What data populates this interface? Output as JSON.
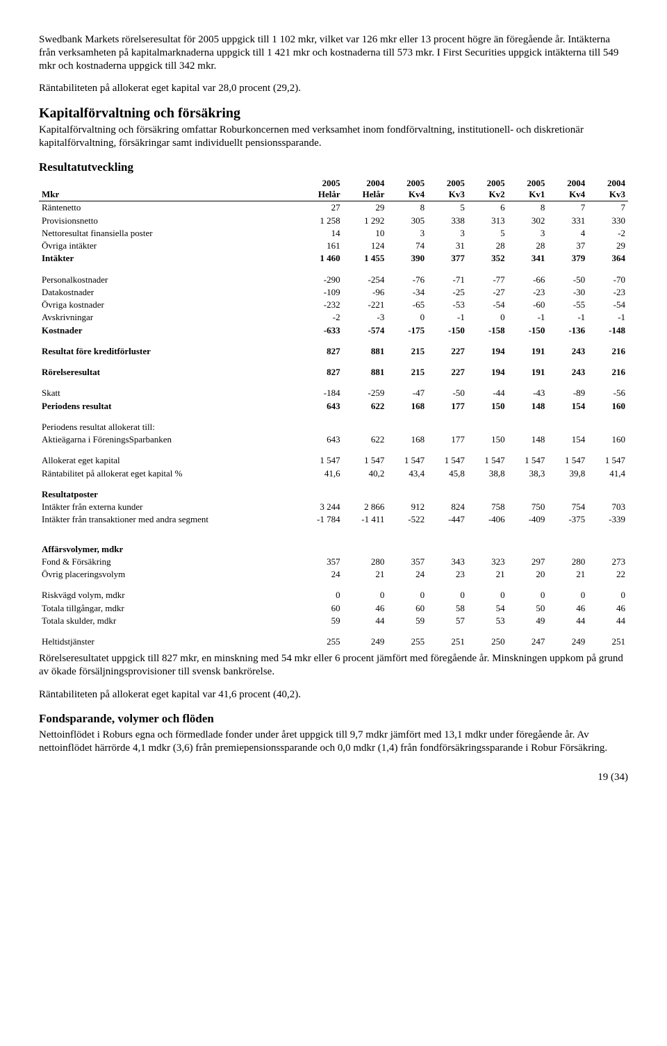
{
  "para1": "Swedbank Markets rörelseresultat för 2005 uppgick till 1 102 mkr, vilket var 126 mkr eller 13 procent högre än föregående år. Intäkterna från verksamheten på kapitalmarknaderna uppgick till 1 421 mkr och kostnaderna till 573 mkr. I First Securities uppgick intäkterna till 549 mkr och kostnaderna uppgick till 342 mkr.",
  "para2": "Räntabiliteten på allokerat eget kapital var 28,0 procent (29,2).",
  "h2": "Kapitalförvaltning och försäkring",
  "para3": "Kapitalförvaltning och försäkring omfattar Roburkoncernen med verksamhet inom fondförvaltning, institutionell- och diskretionär kapitalförvaltning, försäkringar samt individuellt pensionssparande.",
  "h3a": "Resultatutveckling",
  "header": {
    "mkr": "Mkr",
    "cols": [
      {
        "a": "2005",
        "b": "Helår"
      },
      {
        "a": "2004",
        "b": "Helår"
      },
      {
        "a": "2005",
        "b": "Kv4"
      },
      {
        "a": "2005",
        "b": "Kv3"
      },
      {
        "a": "2005",
        "b": "Kv2"
      },
      {
        "a": "2005",
        "b": "Kv1"
      },
      {
        "a": "2004",
        "b": "Kv4"
      },
      {
        "a": "2004",
        "b": "Kv3"
      }
    ]
  },
  "rows": [
    {
      "l": "Räntenetto",
      "v": [
        "27",
        "29",
        "8",
        "5",
        "6",
        "8",
        "7",
        "7"
      ]
    },
    {
      "l": "Provisionsnetto",
      "v": [
        "1 258",
        "1 292",
        "305",
        "338",
        "313",
        "302",
        "331",
        "330"
      ]
    },
    {
      "l": "Nettoresultat finansiella poster",
      "v": [
        "14",
        "10",
        "3",
        "3",
        "5",
        "3",
        "4",
        "-2"
      ]
    },
    {
      "l": "Övriga intäkter",
      "v": [
        "161",
        "124",
        "74",
        "31",
        "28",
        "28",
        "37",
        "29"
      ]
    },
    {
      "l": "Intäkter",
      "v": [
        "1 460",
        "1 455",
        "390",
        "377",
        "352",
        "341",
        "379",
        "364"
      ],
      "bold": true
    },
    {
      "spacer": true
    },
    {
      "l": "Personalkostnader",
      "v": [
        "-290",
        "-254",
        "-76",
        "-71",
        "-77",
        "-66",
        "-50",
        "-70"
      ]
    },
    {
      "l": "Datakostnader",
      "v": [
        "-109",
        "-96",
        "-34",
        "-25",
        "-27",
        "-23",
        "-30",
        "-23"
      ]
    },
    {
      "l": "Övriga kostnader",
      "v": [
        "-232",
        "-221",
        "-65",
        "-53",
        "-54",
        "-60",
        "-55",
        "-54"
      ]
    },
    {
      "l": "Avskrivningar",
      "v": [
        "-2",
        "-3",
        "0",
        "-1",
        "0",
        "-1",
        "-1",
        "-1"
      ]
    },
    {
      "l": "Kostnader",
      "v": [
        "-633",
        "-574",
        "-175",
        "-150",
        "-158",
        "-150",
        "-136",
        "-148"
      ],
      "bold": true
    },
    {
      "spacer": true
    },
    {
      "l": "Resultat före kreditförluster",
      "v": [
        "827",
        "881",
        "215",
        "227",
        "194",
        "191",
        "243",
        "216"
      ],
      "bold": true
    },
    {
      "spacer": true
    },
    {
      "l": "Rörelseresultat",
      "v": [
        "827",
        "881",
        "215",
        "227",
        "194",
        "191",
        "243",
        "216"
      ],
      "bold": true
    },
    {
      "spacer": true
    },
    {
      "l": "Skatt",
      "v": [
        "-184",
        "-259",
        "-47",
        "-50",
        "-44",
        "-43",
        "-89",
        "-56"
      ]
    },
    {
      "l": "Periodens resultat",
      "v": [
        "643",
        "622",
        "168",
        "177",
        "150",
        "148",
        "154",
        "160"
      ],
      "bold": true
    },
    {
      "spacer": true
    },
    {
      "l": "Periodens resultat allokerat till:",
      "v": [
        "",
        "",
        "",
        "",
        "",
        "",
        "",
        ""
      ]
    },
    {
      "l": "Aktieägarna i FöreningsSparbanken",
      "v": [
        "643",
        "622",
        "168",
        "177",
        "150",
        "148",
        "154",
        "160"
      ]
    },
    {
      "spacer": true
    },
    {
      "l": "Allokerat eget kapital",
      "v": [
        "1 547",
        "1 547",
        "1 547",
        "1 547",
        "1 547",
        "1 547",
        "1 547",
        "1 547"
      ]
    },
    {
      "l": "Räntabilitet på allokerat eget kapital %",
      "v": [
        "41,6",
        "40,2",
        "43,4",
        "45,8",
        "38,8",
        "38,3",
        "39,8",
        "41,4"
      ]
    },
    {
      "spacer": true
    },
    {
      "l": "Resultatposter",
      "v": [
        "",
        "",
        "",
        "",
        "",
        "",
        "",
        ""
      ],
      "bold": true
    },
    {
      "l": "Intäkter från externa kunder",
      "v": [
        "3 244",
        "2 866",
        "912",
        "824",
        "758",
        "750",
        "754",
        "703"
      ]
    },
    {
      "l": "Intäkter från transaktioner med andra segment",
      "v": [
        "-1 784",
        "-1 411",
        "-522",
        "-447",
        "-406",
        "-409",
        "-375",
        "-339"
      ]
    },
    {
      "spacer": true
    },
    {
      "spacer": true
    },
    {
      "l": "Affärsvolymer, mdkr",
      "v": [
        "",
        "",
        "",
        "",
        "",
        "",
        "",
        ""
      ],
      "bold": true
    },
    {
      "l": "Fond & Försäkring",
      "v": [
        "357",
        "280",
        "357",
        "343",
        "323",
        "297",
        "280",
        "273"
      ]
    },
    {
      "l": "Övrig placeringsvolym",
      "v": [
        "24",
        "21",
        "24",
        "23",
        "21",
        "20",
        "21",
        "22"
      ]
    },
    {
      "spacer": true
    },
    {
      "l": "Riskvägd volym, mdkr",
      "v": [
        "0",
        "0",
        "0",
        "0",
        "0",
        "0",
        "0",
        "0"
      ]
    },
    {
      "l": "Totala tillgångar, mdkr",
      "v": [
        "60",
        "46",
        "60",
        "58",
        "54",
        "50",
        "46",
        "46"
      ]
    },
    {
      "l": "Totala skulder, mdkr",
      "v": [
        "59",
        "44",
        "59",
        "57",
        "53",
        "49",
        "44",
        "44"
      ]
    },
    {
      "spacer": true
    },
    {
      "l": "Heltidstjänster",
      "v": [
        "255",
        "249",
        "255",
        "251",
        "250",
        "247",
        "249",
        "251"
      ]
    }
  ],
  "para4": "Rörelseresultatet uppgick till 827 mkr, en minskning med 54 mkr eller 6 procent jämfört med föregående år. Minskningen uppkom på grund av ökade försäljningsprovisioner till svensk bankrörelse.",
  "para5": "Räntabiliteten på allokerat eget kapital var 41,6 procent (40,2).",
  "h3b": "Fondsparande, volymer och flöden",
  "para6": "Nettoinflödet i Roburs egna och förmedlade fonder under året uppgick till 9,7 mdkr jämfört med 13,1 mdkr under föregående år. Av nettoinflödet härrörde 4,1 mdkr (3,6) från premiepensionssparande och 0,0 mdkr (1,4) från fondförsäkringssparande i Robur Försäkring.",
  "pagenum": "19 (34)"
}
